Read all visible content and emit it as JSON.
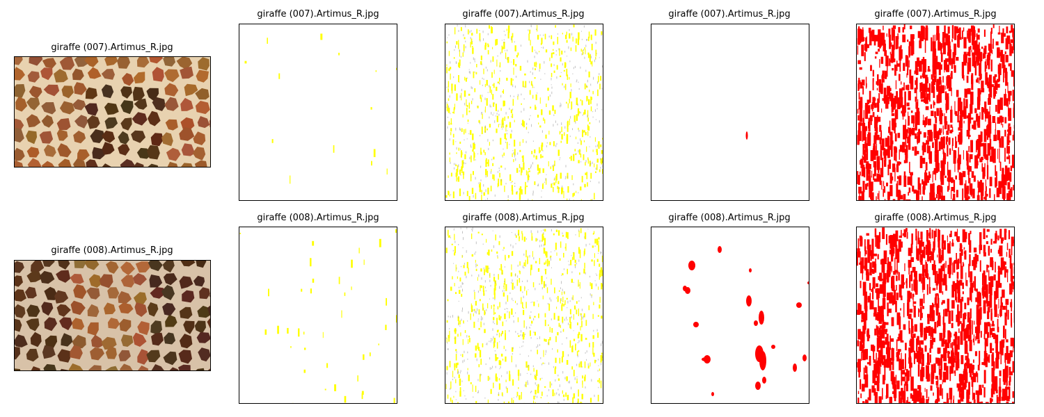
{
  "rows": [
    {
      "panels": [
        {
          "title": "giraffe (007).Artimus_R.jpg",
          "kind": "photo",
          "variant": 1
        },
        {
          "title": "giraffe (007).Artimus_R.jpg",
          "kind": "sparse-yellow"
        },
        {
          "title": "giraffe (007).Artimus_R.jpg",
          "kind": "dense-yellow"
        },
        {
          "title": "giraffe (007).Artimus_R.jpg",
          "kind": "single-red"
        },
        {
          "title": "giraffe (007).Artimus_R.jpg",
          "kind": "dense-red"
        }
      ]
    },
    {
      "panels": [
        {
          "title": "giraffe (008).Artimus_R.jpg",
          "kind": "photo",
          "variant": 2
        },
        {
          "title": "giraffe (008).Artimus_R.jpg",
          "kind": "sparse-yellow"
        },
        {
          "title": "giraffe (008).Artimus_R.jpg",
          "kind": "dense-yellow"
        },
        {
          "title": "giraffe (008).Artimus_R.jpg",
          "kind": "blob-red"
        },
        {
          "title": "giraffe (008).Artimus_R.jpg",
          "kind": "dense-red"
        }
      ]
    }
  ],
  "colors": {
    "yellow": "#ffff00",
    "red": "#ff0000",
    "gray": "#999999"
  }
}
